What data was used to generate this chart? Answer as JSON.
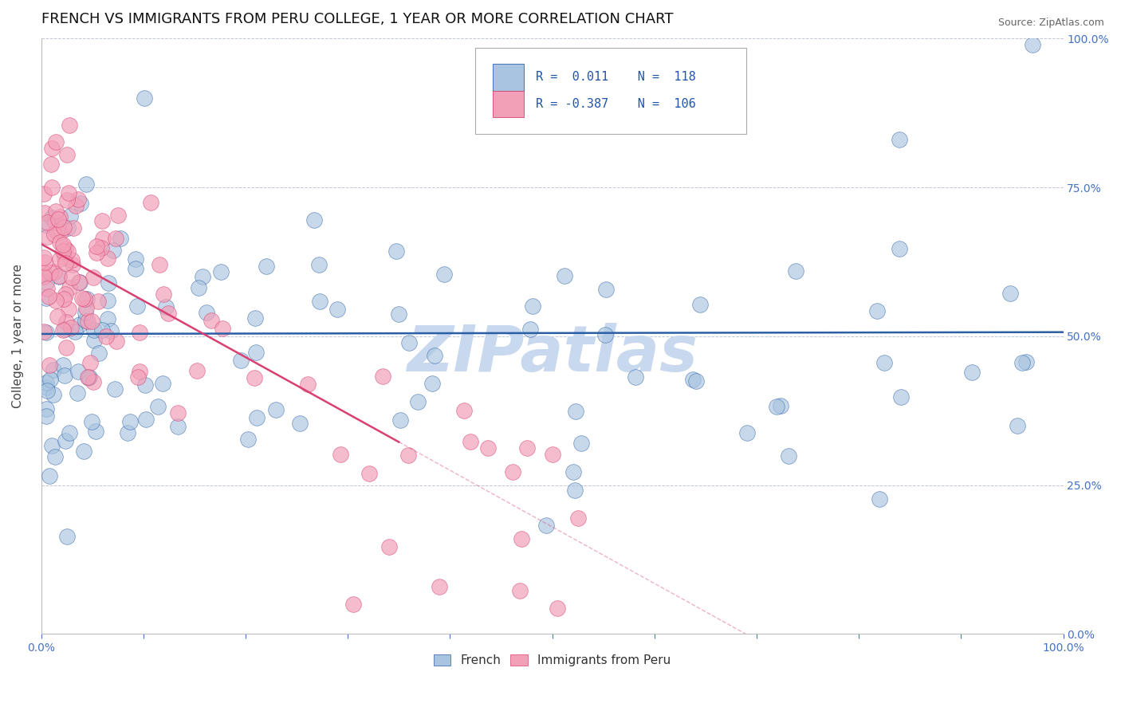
{
  "title": "FRENCH VS IMMIGRANTS FROM PERU COLLEGE, 1 YEAR OR MORE CORRELATION CHART",
  "source_text": "Source: ZipAtlas.com",
  "ylabel": "College, 1 year or more",
  "xlim": [
    0.0,
    1.0
  ],
  "ylim": [
    0.0,
    1.0
  ],
  "blue_color": "#a8c4e0",
  "pink_color": "#f2a0b8",
  "blue_line_color": "#2b5fa5",
  "pink_line_color": "#d94070",
  "watermark_color": "#c8d8ee",
  "background_color": "#ffffff",
  "dashed_line_color": "#c0c8d8",
  "tick_color": "#4472c4",
  "title_fontsize": 13,
  "axis_label_fontsize": 11,
  "tick_fontsize": 10,
  "legend_fontsize": 11,
  "r_french": 0.011,
  "n_french": 118,
  "r_peru": -0.387,
  "n_peru": 106,
  "french_intercept": 0.504,
  "french_slope": 0.003,
  "peru_intercept": 0.655,
  "peru_slope": -0.95
}
